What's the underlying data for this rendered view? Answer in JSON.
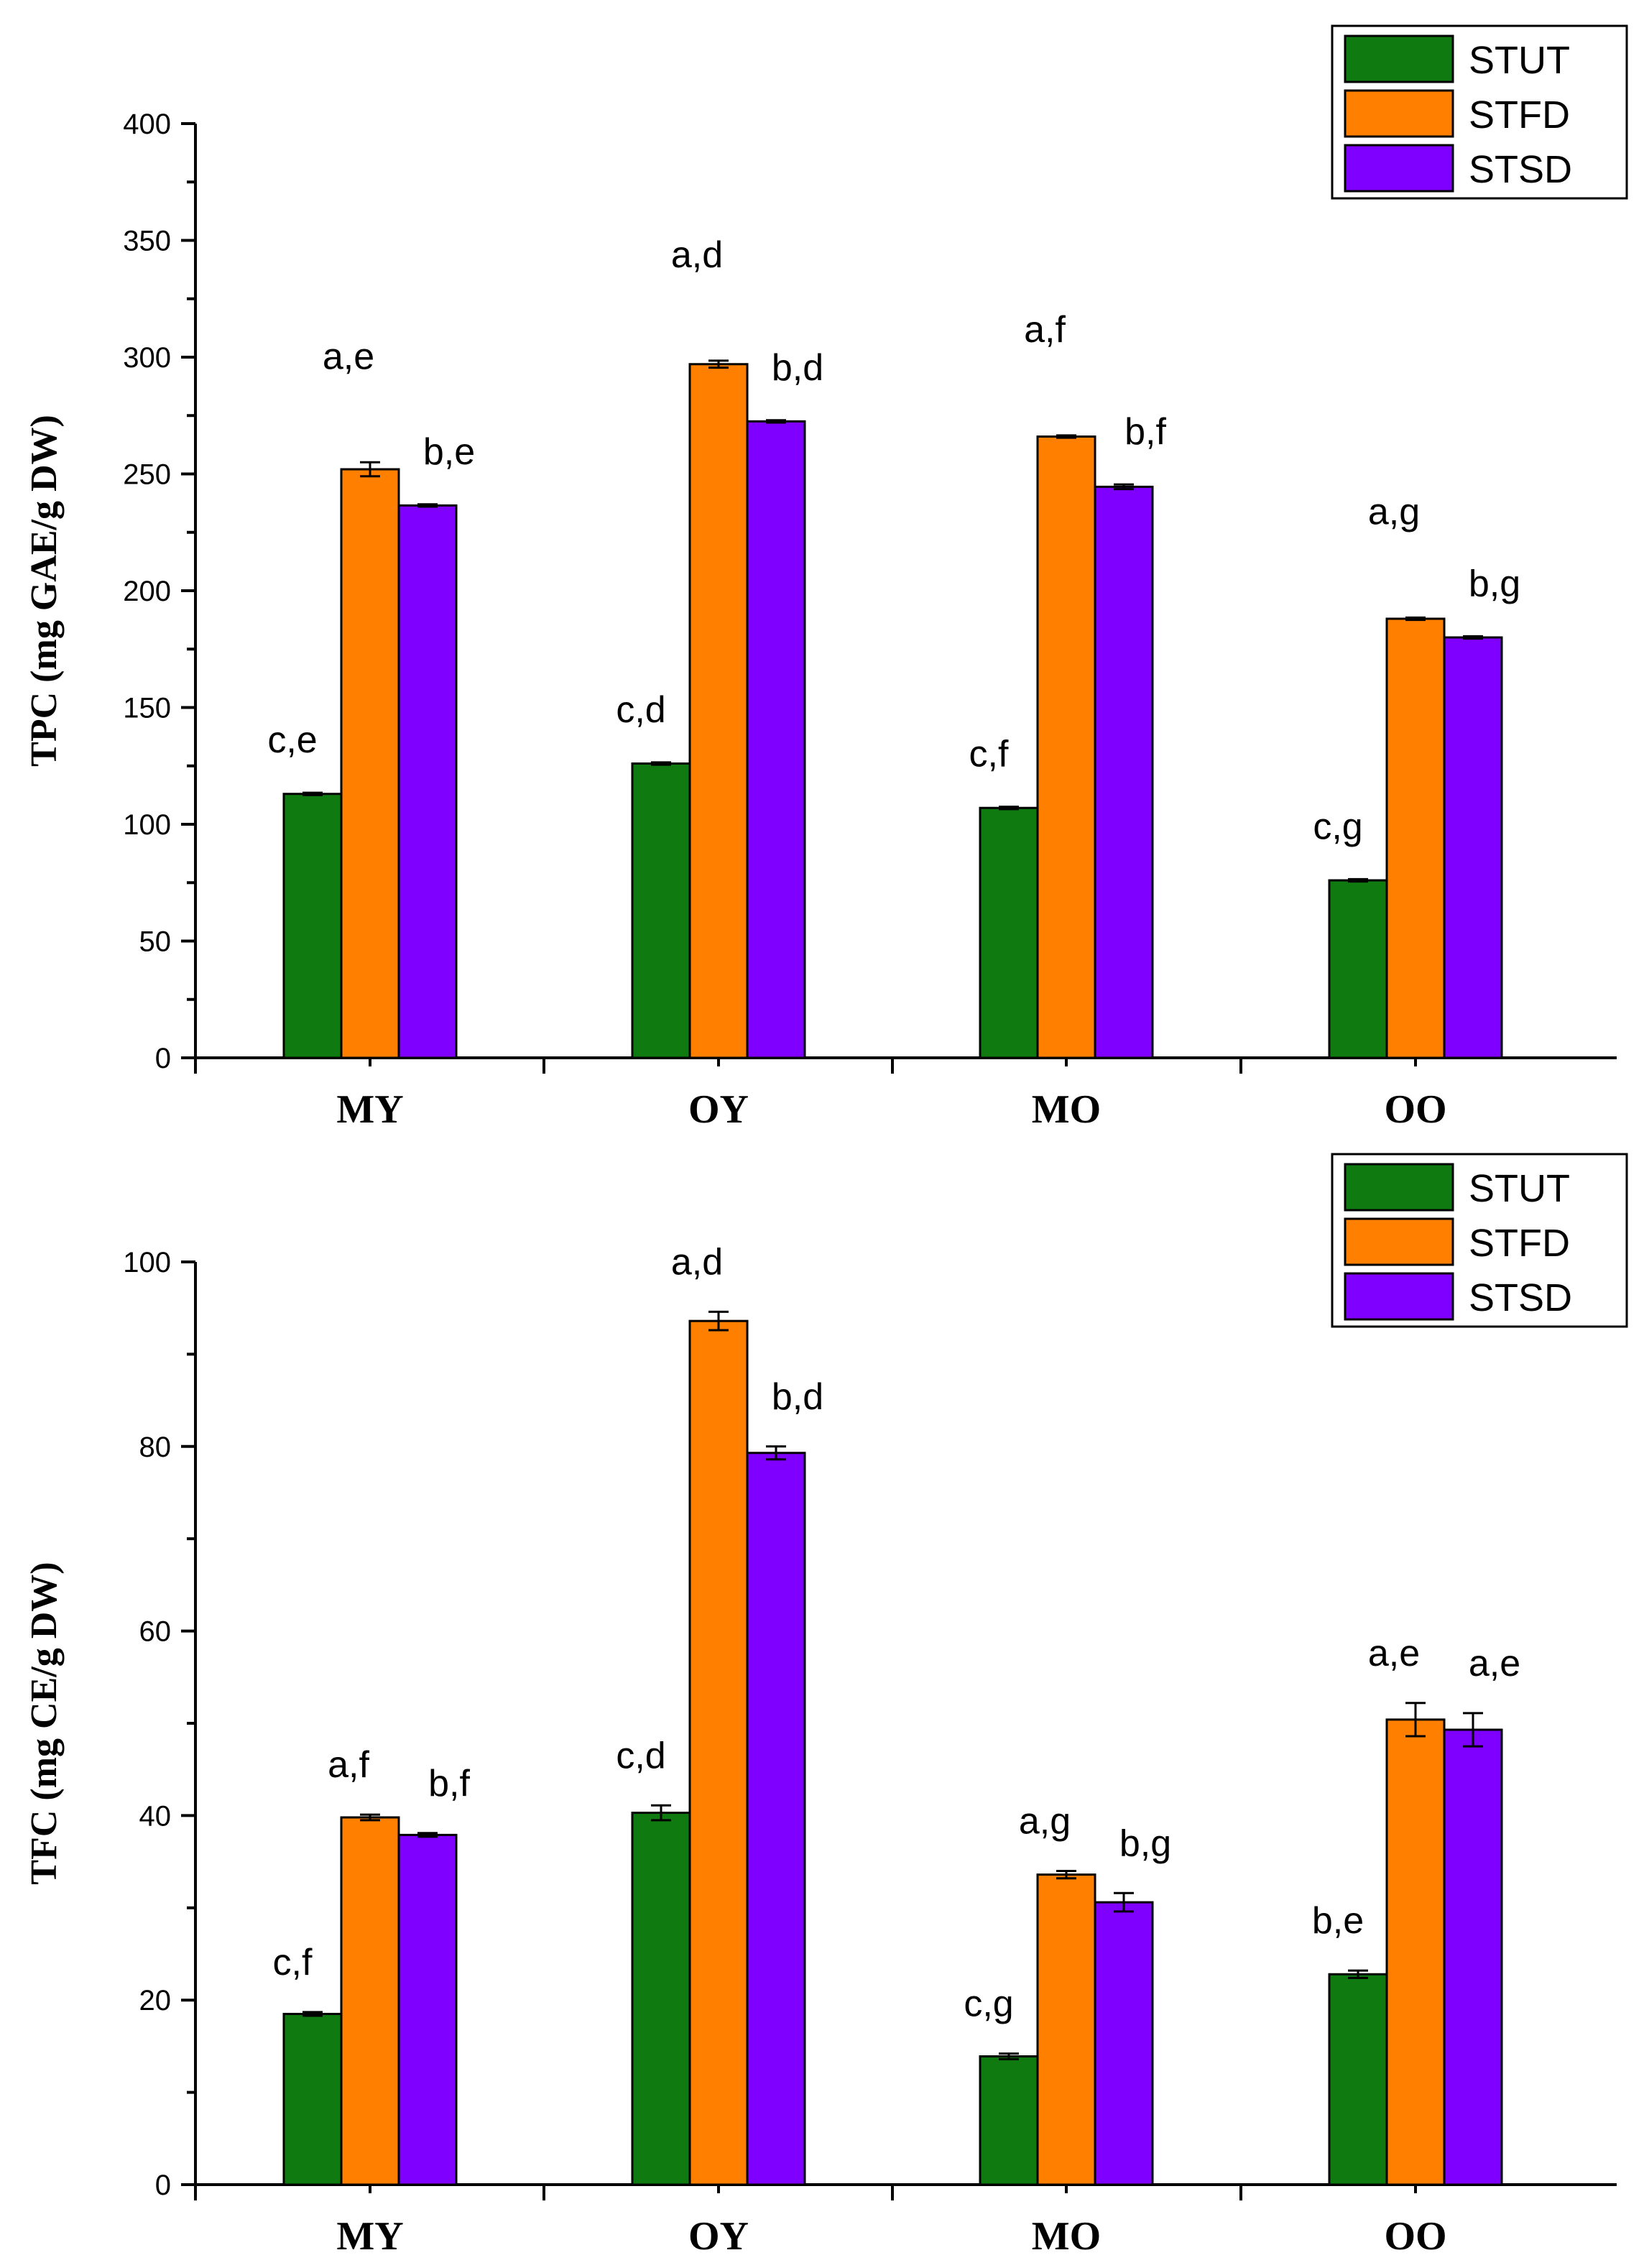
{
  "chart_data": [
    {
      "type": "bar",
      "ylabel": "TPC (mg GAE/g DW)",
      "xlabel": "",
      "categories": [
        "MY",
        "OY",
        "MO",
        "OO"
      ],
      "ylim": [
        0,
        400
      ],
      "yticks": [
        0,
        50,
        100,
        150,
        200,
        250,
        300,
        350,
        400
      ],
      "legend_position": "top-right",
      "series": [
        {
          "name": "STUT",
          "color": "#0f7a0f",
          "values": [
            113,
            126,
            107,
            76
          ],
          "errors": [
            0.5,
            0.5,
            0.5,
            0.5
          ],
          "labels": [
            "c,e",
            "c,d",
            "c,f",
            "c,g"
          ]
        },
        {
          "name": "STFD",
          "color": "#ff8000",
          "values": [
            252,
            297,
            266,
            188
          ],
          "errors": [
            3,
            1.5,
            0.5,
            0.5
          ],
          "labels": [
            "a,e",
            "a,d",
            "a,f",
            "a,g"
          ]
        },
        {
          "name": "STSD",
          "color": "#8000ff",
          "values": [
            236.5,
            272.5,
            244.5,
            180
          ],
          "errors": [
            0.5,
            0.5,
            1,
            0.5
          ],
          "labels": [
            "b,e",
            "b,d",
            "b,f",
            "b,g"
          ]
        }
      ]
    },
    {
      "type": "bar",
      "ylabel": "TFC (mg CE/g DW)",
      "xlabel": "",
      "categories": [
        "MY",
        "OY",
        "MO",
        "OO"
      ],
      "ylim": [
        0,
        100
      ],
      "yticks": [
        0,
        20,
        40,
        60,
        80,
        100
      ],
      "legend_position": "top-right",
      "series": [
        {
          "name": "STUT",
          "color": "#0f7a0f",
          "values": [
            18.5,
            40.3,
            13.9,
            22.8
          ],
          "errors": [
            0.2,
            0.8,
            0.3,
            0.4
          ],
          "labels": [
            "c,f",
            "c,d",
            "c,g",
            "b,e"
          ]
        },
        {
          "name": "STFD",
          "color": "#ff8000",
          "values": [
            39.8,
            93.6,
            33.6,
            50.4
          ],
          "errors": [
            0.3,
            1.0,
            0.4,
            1.8
          ],
          "labels": [
            "a,f",
            "a,d",
            "a,g",
            "a,e"
          ]
        },
        {
          "name": "STSD",
          "color": "#8000ff",
          "values": [
            37.9,
            79.3,
            30.6,
            49.3
          ],
          "errors": [
            0.2,
            0.7,
            1.0,
            1.8
          ],
          "labels": [
            "b,f",
            "b,d",
            "b,g",
            "a,e"
          ]
        }
      ]
    }
  ]
}
